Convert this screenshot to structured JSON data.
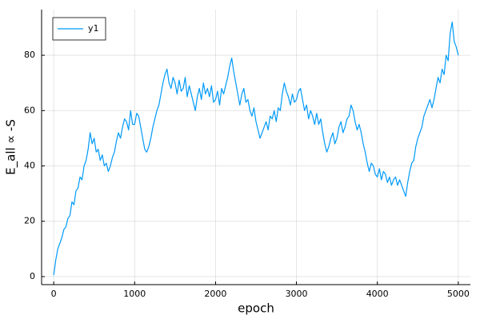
{
  "chart_data": {
    "type": "line",
    "xlabel": "epoch",
    "ylabel": "E_all ∝ -S",
    "xlim": [
      -150,
      5150
    ],
    "ylim": [
      -2.9,
      96.5
    ],
    "xticks": [
      0,
      1000,
      2000,
      3000,
      4000,
      5000
    ],
    "yticks": [
      0,
      20,
      40,
      60,
      80
    ],
    "grid": true,
    "legend": "top-left",
    "x": [
      0,
      25,
      50,
      75,
      100,
      125,
      150,
      175,
      200,
      225,
      250,
      275,
      300,
      325,
      350,
      375,
      400,
      425,
      450,
      475,
      500,
      525,
      550,
      575,
      600,
      625,
      650,
      675,
      700,
      725,
      750,
      775,
      800,
      825,
      850,
      875,
      900,
      925,
      950,
      975,
      1000,
      1025,
      1050,
      1075,
      1100,
      1125,
      1150,
      1175,
      1200,
      1225,
      1250,
      1275,
      1300,
      1325,
      1350,
      1375,
      1400,
      1425,
      1450,
      1475,
      1500,
      1525,
      1550,
      1575,
      1600,
      1625,
      1650,
      1675,
      1700,
      1725,
      1750,
      1775,
      1800,
      1825,
      1850,
      1875,
      1900,
      1925,
      1950,
      1975,
      2000,
      2025,
      2050,
      2075,
      2100,
      2125,
      2150,
      2175,
      2200,
      2225,
      2250,
      2275,
      2300,
      2325,
      2350,
      2375,
      2400,
      2425,
      2450,
      2475,
      2500,
      2525,
      2550,
      2575,
      2600,
      2625,
      2650,
      2675,
      2700,
      2725,
      2750,
      2775,
      2800,
      2825,
      2850,
      2875,
      2900,
      2925,
      2950,
      2975,
      3000,
      3025,
      3050,
      3075,
      3100,
      3125,
      3150,
      3175,
      3200,
      3225,
      3250,
      3275,
      3300,
      3325,
      3350,
      3375,
      3400,
      3425,
      3450,
      3475,
      3500,
      3525,
      3550,
      3575,
      3600,
      3625,
      3650,
      3675,
      3700,
      3725,
      3750,
      3775,
      3800,
      3825,
      3850,
      3875,
      3900,
      3925,
      3950,
      3975,
      4000,
      4025,
      4050,
      4075,
      4100,
      4125,
      4150,
      4175,
      4200,
      4225,
      4250,
      4275,
      4300,
      4325,
      4350,
      4375,
      4400,
      4425,
      4450,
      4475,
      4500,
      4525,
      4550,
      4575,
      4600,
      4625,
      4650,
      4675,
      4700,
      4725,
      4750,
      4775,
      4800,
      4825,
      4850,
      4875,
      4900,
      4925,
      4950,
      4975,
      5000
    ],
    "series": [
      {
        "name": "y1",
        "color": "#009af9",
        "values": [
          0.5,
          6,
          10,
          12,
          14,
          17,
          18,
          21,
          22,
          27,
          26,
          31,
          32,
          36,
          35,
          40,
          42,
          46,
          52,
          48,
          50,
          45,
          46,
          42,
          44,
          40,
          41,
          38,
          40,
          43,
          45,
          49,
          52,
          50,
          54,
          57,
          56,
          53,
          60,
          55,
          55,
          59,
          58,
          54,
          50,
          46,
          45,
          47,
          50,
          54,
          57,
          60,
          62,
          66,
          70,
          73,
          75,
          70,
          68,
          72,
          70,
          66,
          71,
          67,
          68,
          72,
          65,
          69,
          66,
          63,
          60,
          65,
          68,
          64,
          70,
          66,
          68,
          65,
          69,
          63,
          64,
          67,
          62,
          68,
          66,
          69,
          72,
          76,
          79,
          74,
          70,
          66,
          62,
          66,
          68,
          63,
          64,
          60,
          58,
          61,
          56,
          53,
          50,
          52,
          54,
          56,
          53,
          58,
          57,
          60,
          56,
          61,
          60,
          66,
          70,
          67,
          65,
          62,
          66,
          63,
          64,
          67,
          68,
          64,
          60,
          62,
          57,
          60,
          58,
          55,
          59,
          55,
          57,
          52,
          48,
          45,
          47,
          50,
          52,
          48,
          50,
          54,
          56,
          52,
          54,
          57,
          58,
          62,
          60,
          56,
          53,
          55,
          52,
          48,
          45,
          41,
          38,
          41,
          40,
          37,
          36,
          39,
          35,
          38,
          37,
          34,
          36,
          33,
          35,
          36,
          33,
          35,
          33,
          31,
          29,
          34,
          38,
          41,
          42,
          47,
          50,
          52,
          54,
          58,
          60,
          62,
          64,
          61,
          64,
          68,
          72,
          70,
          75,
          73,
          80,
          78,
          88,
          92,
          85,
          83,
          80
        ]
      }
    ]
  }
}
